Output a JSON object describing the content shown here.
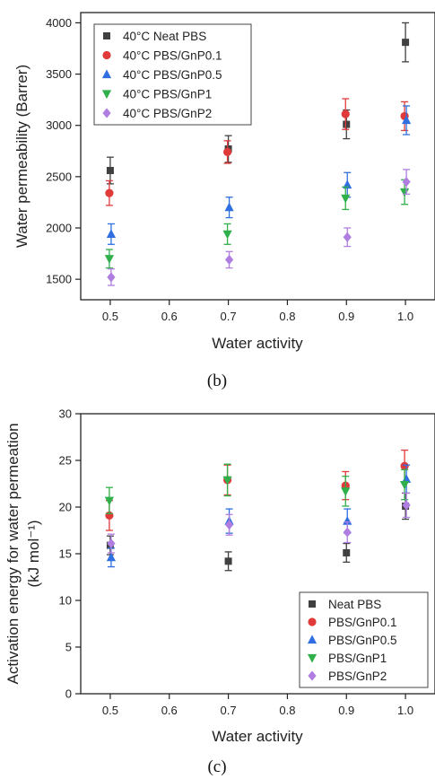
{
  "panel_b_caption": "(b)",
  "panel_c_caption": "(c)",
  "chart_data": [
    {
      "type": "scatter",
      "panel": "b",
      "title": "",
      "xlabel": "Water activity",
      "ylabel": "Water permeability (Barrer)",
      "xlim": [
        0.45,
        1.05
      ],
      "ylim": [
        1300,
        4100
      ],
      "xticks": [
        0.5,
        0.6,
        0.7,
        0.8,
        0.9,
        1.0
      ],
      "xtick_labels": [
        "0.5",
        "0.6",
        "0.7",
        "0.8",
        "0.9",
        "1.0"
      ],
      "yticks": [
        1500,
        2000,
        2500,
        3000,
        3500,
        4000
      ],
      "ytick_labels": [
        "1500",
        "2000",
        "2500",
        "3000",
        "3500",
        "4000"
      ],
      "legend_position": "top-left",
      "x": [
        0.5,
        0.7,
        0.9,
        1.0
      ],
      "series": [
        {
          "name": "40°C Neat PBS",
          "marker": "square",
          "color": "#404040",
          "values": [
            2560,
            2770,
            3010,
            3810
          ],
          "errors": [
            130,
            130,
            140,
            190
          ]
        },
        {
          "name": "40°C PBS/GnP0.1",
          "marker": "circle",
          "color": "#e03a3a",
          "values": [
            2340,
            2740,
            3110,
            3090
          ],
          "errors": [
            120,
            110,
            150,
            140
          ]
        },
        {
          "name": "40°C PBS/GnP0.5",
          "marker": "triangle-up",
          "color": "#2f6fe0",
          "values": [
            1940,
            2200,
            2420,
            3050
          ],
          "errors": [
            100,
            100,
            120,
            140
          ]
        },
        {
          "name": "40°C PBS/GnP1",
          "marker": "triangle-down",
          "color": "#2fb04a",
          "values": [
            1700,
            1940,
            2290,
            2350
          ],
          "errors": [
            90,
            100,
            110,
            120
          ]
        },
        {
          "name": "40°C PBS/GnP2",
          "marker": "diamond",
          "color": "#b07ee0",
          "values": [
            1520,
            1690,
            1910,
            2450
          ],
          "errors": [
            80,
            80,
            90,
            120
          ]
        }
      ]
    },
    {
      "type": "scatter",
      "panel": "c",
      "title": "",
      "xlabel": "Water activity",
      "ylabel_line1": "Activation energy for water permeation",
      "ylabel_line2": "(kJ mol⁻¹)",
      "xlim": [
        0.45,
        1.05
      ],
      "ylim": [
        0,
        30
      ],
      "xticks": [
        0.5,
        0.6,
        0.7,
        0.8,
        0.9,
        1.0
      ],
      "xtick_labels": [
        "0.5",
        "0.6",
        "0.7",
        "0.8",
        "0.9",
        "1.0"
      ],
      "yticks": [
        0,
        5,
        10,
        15,
        20,
        25,
        30
      ],
      "ytick_labels": [
        "0",
        "5",
        "10",
        "15",
        "20",
        "25",
        "30"
      ],
      "legend_position": "bottom-right",
      "x": [
        0.5,
        0.7,
        0.9,
        1.0
      ],
      "series": [
        {
          "name": "Neat PBS",
          "marker": "square",
          "color": "#404040",
          "values": [
            15.9,
            14.2,
            15.1,
            20.1
          ],
          "errors": [
            1.0,
            1.0,
            1.0,
            1.4
          ]
        },
        {
          "name": "PBS/GnP0.1",
          "marker": "circle",
          "color": "#e03a3a",
          "values": [
            19.1,
            22.9,
            22.3,
            24.4
          ],
          "errors": [
            1.6,
            1.6,
            1.5,
            1.7
          ]
        },
        {
          "name": "PBS/GnP0.5",
          "marker": "triangle-up",
          "color": "#2f6fe0",
          "values": [
            14.6,
            18.5,
            18.5,
            23.0
          ],
          "errors": [
            1.0,
            1.3,
            1.3,
            1.5
          ]
        },
        {
          "name": "PBS/GnP1",
          "marker": "triangle-down",
          "color": "#2fb04a",
          "values": [
            20.7,
            22.9,
            21.7,
            22.4
          ],
          "errors": [
            1.4,
            1.7,
            1.6,
            1.6
          ]
        },
        {
          "name": "PBS/GnP2",
          "marker": "diamond",
          "color": "#b07ee0",
          "values": [
            16.1,
            18.1,
            17.3,
            20.2
          ],
          "errors": [
            1.0,
            1.1,
            1.1,
            1.3
          ]
        }
      ]
    }
  ]
}
